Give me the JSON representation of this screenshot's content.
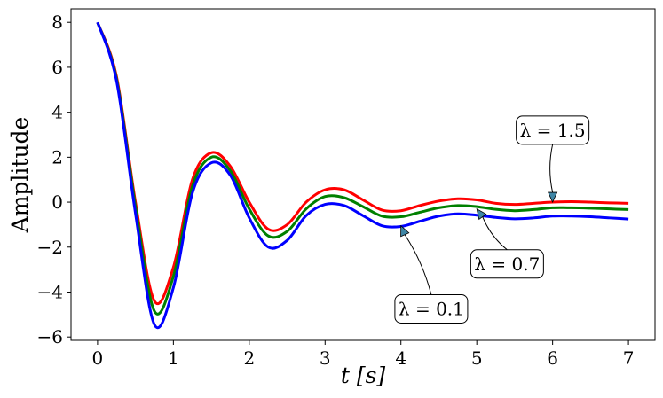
{
  "chart_data": {
    "type": "line",
    "title": "",
    "xlabel": "t [s]",
    "ylabel": "Amplitude",
    "xlim": [
      -0.35,
      7.35
    ],
    "ylim": [
      -6.15,
      8.6
    ],
    "x_ticks": [
      0,
      1,
      2,
      3,
      4,
      5,
      6,
      7
    ],
    "x_tick_labels": [
      "0",
      "1",
      "2",
      "3",
      "4",
      "5",
      "6",
      "7"
    ],
    "y_ticks": [
      8,
      6,
      4,
      2,
      0,
      -2,
      -4,
      -6
    ],
    "y_tick_labels": [
      "8",
      "6",
      "4",
      "2",
      "0",
      "−2",
      "−4",
      "−6"
    ],
    "grid": false,
    "legend": "none",
    "x": [
      0,
      0.25,
      0.5,
      0.75,
      1.0,
      1.25,
      1.5,
      1.75,
      2.0,
      2.25,
      2.5,
      2.75,
      3.0,
      3.25,
      3.5,
      3.75,
      4.0,
      4.25,
      4.5,
      4.75,
      5.0,
      5.25,
      5.5,
      5.75,
      6.0,
      6.25,
      6.5,
      6.75,
      7.0
    ],
    "series": [
      {
        "color": "#ff0000",
        "values": [
          8.0,
          5.6,
          0.0,
          -4.4,
          -2.9,
          1.0,
          2.2,
          1.6,
          0.0,
          -1.2,
          -1.0,
          0.0,
          0.55,
          0.55,
          0.1,
          -0.35,
          -0.38,
          -0.15,
          0.05,
          0.15,
          0.1,
          -0.05,
          -0.1,
          -0.05,
          0.0,
          0.02,
          0.0,
          -0.03,
          -0.05
        ]
      },
      {
        "color": "#008000",
        "values": [
          8.0,
          5.5,
          -0.2,
          -4.85,
          -3.3,
          0.7,
          2.0,
          1.4,
          -0.3,
          -1.5,
          -1.3,
          -0.3,
          0.25,
          0.2,
          -0.2,
          -0.62,
          -0.65,
          -0.45,
          -0.25,
          -0.15,
          -0.2,
          -0.32,
          -0.38,
          -0.33,
          -0.25,
          -0.25,
          -0.27,
          -0.3,
          -0.33
        ]
      },
      {
        "color": "#0000ff",
        "values": [
          8.0,
          5.4,
          -0.5,
          -5.45,
          -3.8,
          0.4,
          1.75,
          1.2,
          -0.7,
          -2.0,
          -1.7,
          -0.6,
          -0.1,
          -0.15,
          -0.6,
          -1.05,
          -1.08,
          -0.85,
          -0.62,
          -0.52,
          -0.58,
          -0.68,
          -0.74,
          -0.7,
          -0.62,
          -0.62,
          -0.65,
          -0.7,
          -0.75
        ]
      }
    ],
    "annotations": [
      {
        "label": "λ = 1.5",
        "point": [
          6.0,
          0.0
        ],
        "text_at": [
          6.0,
          3.2
        ]
      },
      {
        "label": "λ = 0.7",
        "point": [
          5.0,
          -0.3
        ],
        "text_at": [
          5.4,
          -2.75
        ]
      },
      {
        "label": "λ = 0.1",
        "point": [
          4.0,
          -1.05
        ],
        "text_at": [
          4.4,
          -4.75
        ]
      }
    ]
  }
}
